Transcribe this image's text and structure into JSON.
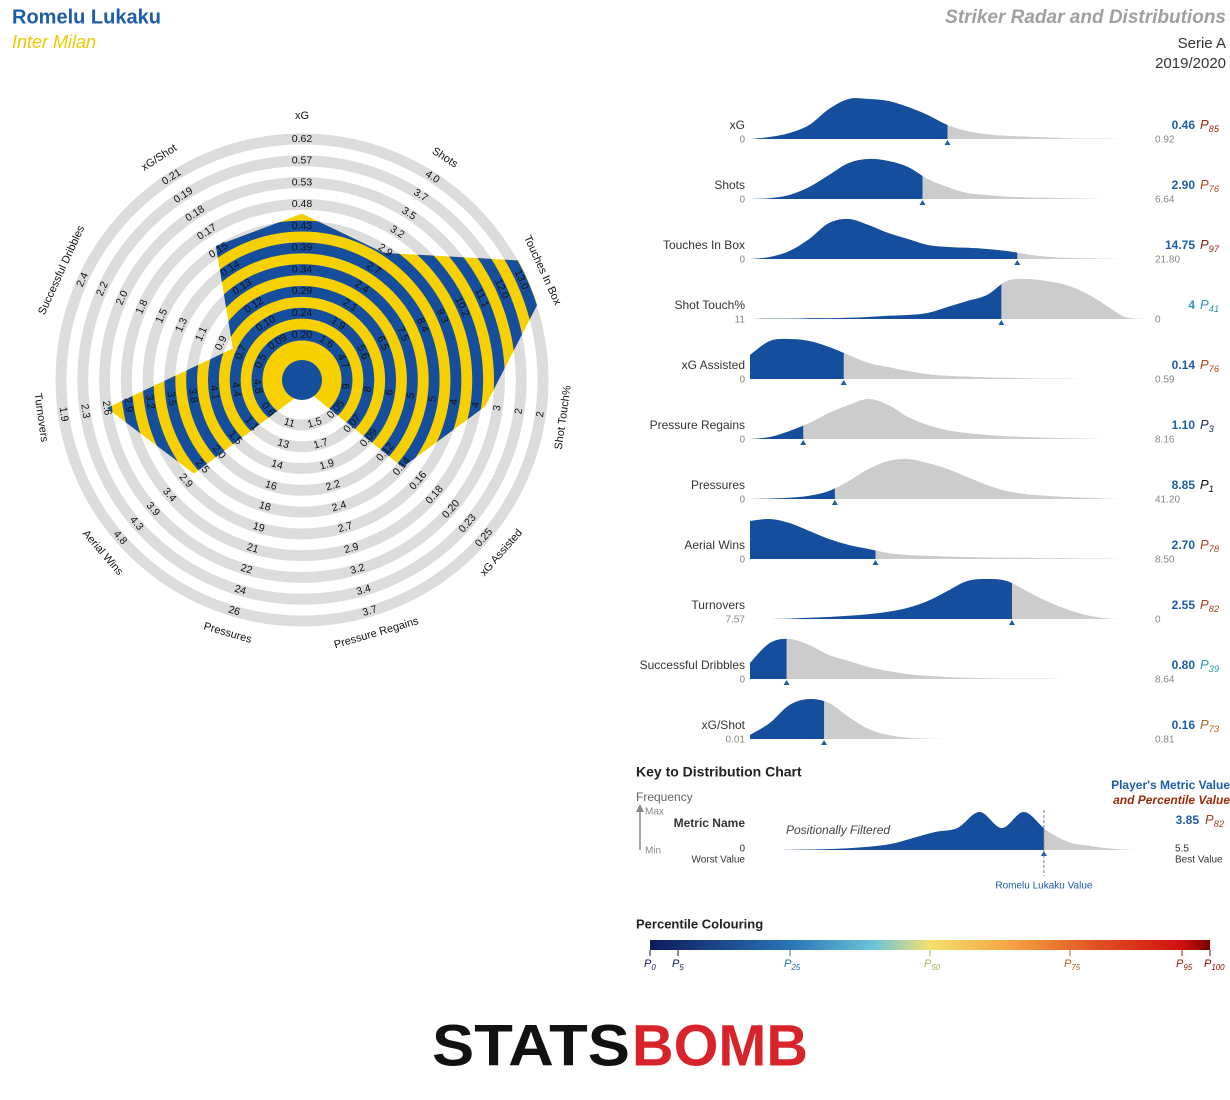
{
  "header": {
    "player": "Romelu Lukaku",
    "team": "Inter Milan",
    "title": "Striker Radar and Distributions",
    "competition": "Serie A",
    "season": "2019/2020"
  },
  "percentile_prefix": "P",
  "metrics": [
    {
      "name": "xG",
      "ticks": [
        "0.20",
        "0.24",
        "0.29",
        "0.34",
        "0.39",
        "0.43",
        "0.48",
        "0.53",
        "0.57",
        "0.62"
      ],
      "min": "0",
      "max": "0.92",
      "value": "0.46",
      "percentile": 85,
      "value_color": "#1f5ca8",
      "percentile_color": "#9b2a0a",
      "density": [
        0,
        0.05,
        0.15,
        0.35,
        0.75,
        1,
        1,
        0.95,
        0.8,
        0.6,
        0.35,
        0.2,
        0.12,
        0.08,
        0.06,
        0.04,
        0.02,
        0.01,
        0.01,
        0,
        0
      ]
    },
    {
      "name": "Shots",
      "ticks": [
        "1.6",
        "1.9",
        "2.1",
        "2.4",
        "2.7",
        "2.9",
        "3.2",
        "3.5",
        "3.7",
        "4.0"
      ],
      "min": "0",
      "max": "6.64",
      "value": "2.90",
      "percentile": 76,
      "value_color": "#1f5ca8",
      "percentile_color": "#a84a18",
      "density": [
        0,
        0.02,
        0.1,
        0.3,
        0.6,
        0.9,
        1,
        0.95,
        0.8,
        0.5,
        0.3,
        0.15,
        0.1,
        0.06,
        0.04,
        0.03,
        0.02,
        0.01,
        0,
        0,
        0
      ]
    },
    {
      "name": "Touches In Box",
      "ticks": [
        "4.7",
        "5.6",
        "6.5",
        "7.5",
        "8.4",
        "9.3",
        "10.2",
        "11.1",
        "12.0",
        "13.0"
      ],
      "min": "0",
      "max": "21.80",
      "value": "14.75",
      "percentile": 97,
      "value_color": "#1f5ca8",
      "percentile_color": "#8c1c0c",
      "density": [
        0,
        0.05,
        0.2,
        0.5,
        0.9,
        1,
        0.85,
        0.65,
        0.5,
        0.35,
        0.3,
        0.28,
        0.25,
        0.2,
        0.12,
        0.06,
        0.03,
        0.02,
        0.01,
        0,
        0
      ]
    },
    {
      "name": "Shot Touch%",
      "ticks": [
        "9",
        "8",
        "6",
        "5",
        "5",
        "4",
        "4",
        "3",
        "2",
        "2"
      ],
      "min": "11",
      "max": "0",
      "value": "4",
      "percentile": 41,
      "value_color": "#2f96b4",
      "percentile_color": "#2f96b4",
      "density": [
        0,
        0.01,
        0.01,
        0.02,
        0.02,
        0.03,
        0.05,
        0.08,
        0.1,
        0.15,
        0.3,
        0.45,
        0.6,
        0.95,
        1,
        0.95,
        0.85,
        0.65,
        0.35,
        0.05,
        0
      ]
    },
    {
      "name": "xG Assisted",
      "ticks": [
        "0.05",
        "0.07",
        "0.09",
        "0.12",
        "0.14",
        "0.16",
        "0.18",
        "0.20",
        "0.23",
        "0.25"
      ],
      "min": "0",
      "max": "0.59",
      "value": "0.14",
      "percentile": 76,
      "value_color": "#1f5ca8",
      "percentile_color": "#a84a18",
      "density": [
        0.6,
        0.95,
        1,
        0.95,
        0.8,
        0.6,
        0.4,
        0.3,
        0.2,
        0.12,
        0.08,
        0.06,
        0.04,
        0.03,
        0.02,
        0.01,
        0.01,
        0,
        0,
        0,
        0
      ]
    },
    {
      "name": "Pressure Regains",
      "ticks": [
        "1.5",
        "1.7",
        "1.9",
        "2.2",
        "2.4",
        "2.7",
        "2.9",
        "3.2",
        "3.4",
        "3.7"
      ],
      "min": "0",
      "max": "8.16",
      "value": "1.10",
      "percentile": 3,
      "value_color": "#1f5ca8",
      "percentile_color": "#1b2a6b",
      "density": [
        0,
        0.05,
        0.2,
        0.4,
        0.65,
        0.85,
        1,
        0.85,
        0.55,
        0.35,
        0.22,
        0.15,
        0.1,
        0.07,
        0.05,
        0.03,
        0.02,
        0.01,
        0,
        0,
        0
      ]
    },
    {
      "name": "Pressures",
      "ticks": [
        "11",
        "13",
        "14",
        "16",
        "18",
        "19",
        "21",
        "22",
        "24",
        "26"
      ],
      "min": "0",
      "max": "41.20",
      "value": "8.85",
      "percentile": 1,
      "value_color": "#1f5ca8",
      "percentile_color": "#111111",
      "density": [
        0,
        0.01,
        0.03,
        0.08,
        0.2,
        0.45,
        0.75,
        0.95,
        1,
        0.9,
        0.75,
        0.55,
        0.35,
        0.2,
        0.12,
        0.08,
        0.05,
        0.03,
        0.01,
        0,
        0
      ]
    },
    {
      "name": "Aerial Wins",
      "ticks": [
        "0.6",
        "1.1",
        "1.5",
        "2.0",
        "2.5",
        "2.9",
        "3.4",
        "3.9",
        "4.3",
        "4.8"
      ],
      "min": "0",
      "max": "8.50",
      "value": "2.70",
      "percentile": 78,
      "value_color": "#1f5ca8",
      "percentile_color": "#a3461a",
      "density": [
        0.95,
        1,
        0.9,
        0.7,
        0.5,
        0.35,
        0.25,
        0.15,
        0.1,
        0.08,
        0.06,
        0.05,
        0.04,
        0.03,
        0.03,
        0.02,
        0.02,
        0.01,
        0.01,
        0,
        0
      ]
    },
    {
      "name": "Turnovers",
      "ticks": [
        "4.8",
        "4.4",
        "4.1",
        "3.8",
        "3.5",
        "3.2",
        "2.9",
        "2.6",
        "2.3",
        "1.9"
      ],
      "min": "7.57",
      "max": "0",
      "value": "2.55",
      "percentile": 82,
      "value_color": "#1f5ca8",
      "percentile_color": "#a64016",
      "density": [
        0,
        0,
        0.01,
        0.03,
        0.05,
        0.08,
        0.12,
        0.18,
        0.28,
        0.45,
        0.7,
        0.95,
        1,
        0.95,
        0.7,
        0.45,
        0.25,
        0.1,
        0.02,
        0,
        0
      ]
    },
    {
      "name": "Successful Dribbles",
      "ticks": [
        "0.5",
        "0.7",
        "0.9",
        "1.1",
        "1.3",
        "1.5",
        "1.8",
        "2.0",
        "2.2",
        "2.4"
      ],
      "min": "0",
      "max": "8.64",
      "value": "0.80",
      "percentile": 39,
      "value_color": "#1f5ca8",
      "percentile_color": "#2f96b4",
      "density": [
        0.4,
        0.9,
        1,
        0.85,
        0.6,
        0.45,
        0.3,
        0.2,
        0.12,
        0.08,
        0.05,
        0.03,
        0.02,
        0.01,
        0.01,
        0.01,
        0,
        0,
        0,
        0,
        0
      ]
    },
    {
      "name": "xG/Shot",
      "ticks": [
        "0.09",
        "0.10",
        "0.12",
        "0.13",
        "0.14",
        "0.15",
        "0.17",
        "0.18",
        "0.19",
        "0.21"
      ],
      "min": "0.01",
      "max": "0.81",
      "value": "0.16",
      "percentile": 73,
      "value_color": "#1f5ca8",
      "percentile_color": "#b0621e",
      "density": [
        0.1,
        0.4,
        0.85,
        1,
        0.9,
        0.55,
        0.25,
        0.1,
        0.03,
        0.01,
        0,
        0,
        0,
        0,
        0,
        0,
        0,
        0,
        0,
        0,
        0
      ]
    }
  ],
  "key": {
    "title": "Key to Distribution Chart",
    "frequency": "Frequency",
    "max_label": "Max",
    "min_label": "Min",
    "metric_name": "Metric Name",
    "filter_note": "Positionally Filtered",
    "min_value": "0",
    "min_caption": "Worst Value",
    "max_value": "5.5",
    "max_caption": "Best Value",
    "legend_line1": "Player's Metric Value",
    "legend_line2": "and Percentile Value",
    "value": "3.85",
    "percentile": 82,
    "percentile_color": "#a64016",
    "marker_label": "Romelu Lukaku Value",
    "density": [
      0,
      0.01,
      0.02,
      0.04,
      0.08,
      0.15,
      0.3,
      0.45,
      0.55,
      0.95,
      0.55,
      0.95,
      0.5,
      0.2,
      0.1,
      0.03,
      0,
      0
    ]
  },
  "percentile_scale": {
    "title": "Percentile Colouring",
    "ticks": [
      0,
      5,
      25,
      50,
      75,
      95,
      100
    ],
    "tick_colors": [
      "#0d1a5c",
      "#0d1a5c",
      "#2a6ca8",
      "#a8b060",
      "#b06020",
      "#a02010",
      "#8b0000"
    ],
    "stops": [
      {
        "at": 0,
        "color": "#0d1a5c"
      },
      {
        "at": 25,
        "color": "#2a74b8"
      },
      {
        "at": 40,
        "color": "#6cc4d8"
      },
      {
        "at": 50,
        "color": "#f5e070"
      },
      {
        "at": 65,
        "color": "#f5a040"
      },
      {
        "at": 80,
        "color": "#e05020"
      },
      {
        "at": 95,
        "color": "#d01010"
      },
      {
        "at": 100,
        "color": "#7a0000"
      }
    ]
  },
  "logo": {
    "left": "STATS",
    "right": "BOMB"
  }
}
